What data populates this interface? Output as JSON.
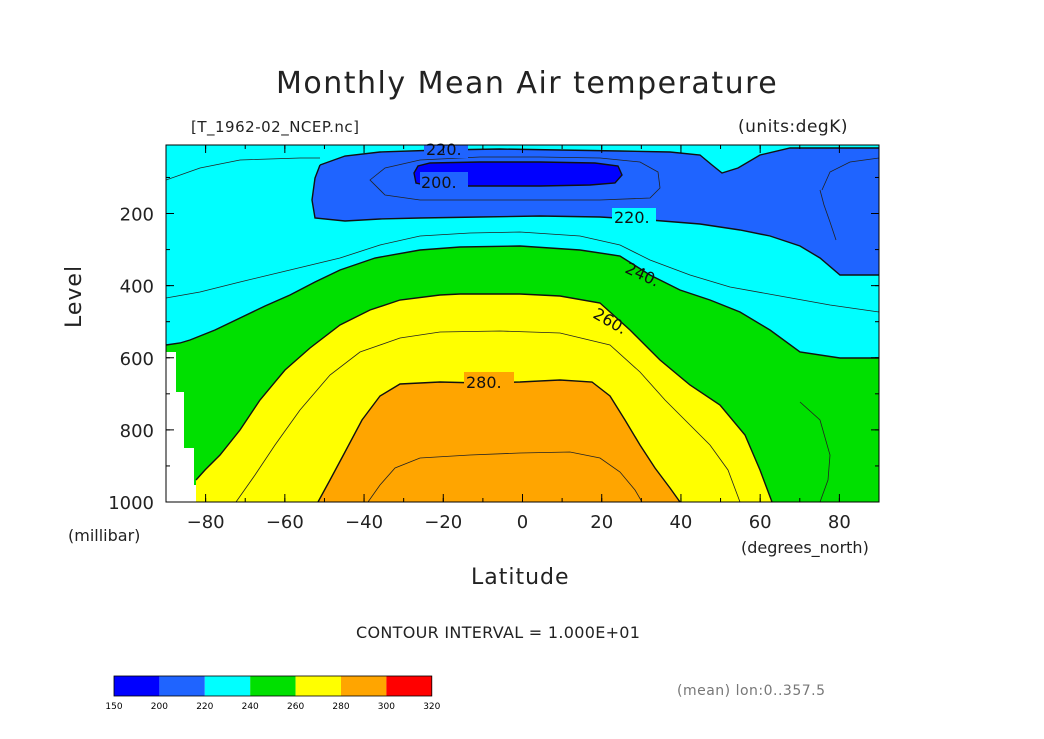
{
  "chart_data": {
    "type": "contour",
    "title": "Monthly Mean Air temperature",
    "file_label": "[T_1962-02_NCEP.nc]",
    "units_label": "(units:degK)",
    "xlabel": "Latitude",
    "x_units": "(degrees_north)",
    "ylabel": "Level",
    "y_units": "(millibar)",
    "x_range": [
      -90,
      90
    ],
    "y_range": [
      1000,
      10
    ],
    "x_ticks": [
      "−80",
      "−60",
      "−40",
      "−20",
      "0",
      "20",
      "40",
      "60",
      "80"
    ],
    "x_tick_values": [
      -80,
      -60,
      -40,
      -20,
      0,
      20,
      40,
      60,
      80
    ],
    "y_ticks": [
      "200",
      "400",
      "600",
      "800",
      "1000"
    ],
    "y_tick_values": [
      200,
      400,
      600,
      800,
      1000
    ],
    "contour_labels": [
      "220.",
      "200.",
      "220.",
      "240.",
      "260.",
      "280."
    ],
    "contour_interval_text": "CONTOUR INTERVAL = 1.000E+01",
    "mean_text": "(mean) lon:0..357.5",
    "colorbar": {
      "ticks": [
        "150",
        "200",
        "220",
        "240",
        "260",
        "280",
        "300",
        "320"
      ],
      "colors": [
        "#0000ff",
        "#1f64ff",
        "#00ffff",
        "#00e000",
        "#ffff00",
        "#ffa500",
        "#ff0000"
      ]
    }
  }
}
